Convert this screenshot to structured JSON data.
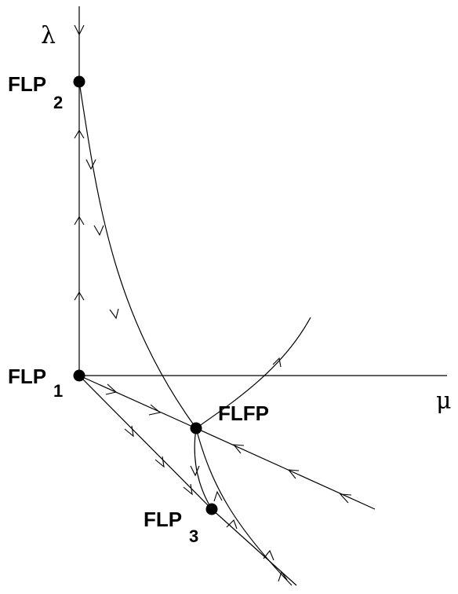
{
  "axes": {
    "vertical_label": "λ",
    "horizontal_label": "μ"
  },
  "fixed_points": [
    {
      "id": "flp2",
      "name": "FLP",
      "subscript": "2"
    },
    {
      "id": "flp1",
      "name": "FLP",
      "subscript": "1"
    },
    {
      "id": "flfp",
      "name": "FLFP",
      "subscript": ""
    },
    {
      "id": "flp3",
      "name": "FLP",
      "subscript": "3"
    }
  ]
}
